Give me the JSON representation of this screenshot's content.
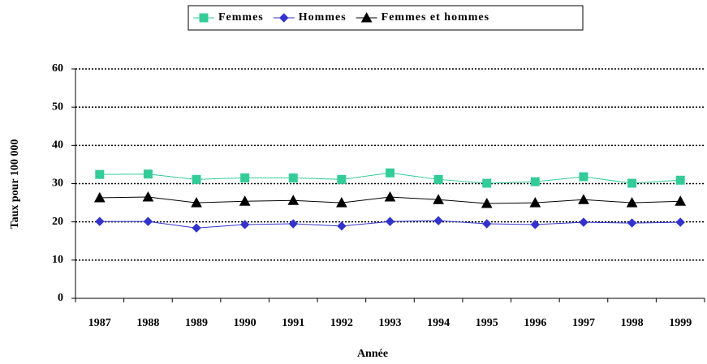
{
  "chart_data": {
    "type": "line",
    "x_label": "Année",
    "y_label": "Taux pour 100 000",
    "categories": [
      "1987",
      "1988",
      "1989",
      "1990",
      "1991",
      "1992",
      "1993",
      "1994",
      "1995",
      "1996",
      "1997",
      "1998",
      "1999"
    ],
    "series": [
      {
        "name": "Femmes",
        "color": "#33cc99",
        "marker": "square",
        "values": [
          32.4,
          32.5,
          31.1,
          31.5,
          31.5,
          31.1,
          32.8,
          31.1,
          30.1,
          30.5,
          31.8,
          30.1,
          30.9
        ]
      },
      {
        "name": "Hommes",
        "color": "#3333cc",
        "marker": "diamond",
        "values": [
          20.1,
          20.1,
          18.4,
          19.3,
          19.5,
          18.9,
          20.1,
          20.3,
          19.5,
          19.3,
          19.9,
          19.7,
          19.9
        ]
      },
      {
        "name": "Femmes et hommes",
        "color": "#000000",
        "marker": "triangle",
        "values": [
          26.3,
          26.5,
          25.0,
          25.4,
          25.6,
          25.0,
          26.5,
          25.8,
          24.8,
          25.0,
          25.8,
          25.0,
          25.4
        ]
      }
    ],
    "ylim": [
      0,
      60
    ],
    "yticks": [
      0,
      10,
      20,
      30,
      40,
      50,
      60
    ],
    "grid": true,
    "legend": "top"
  }
}
